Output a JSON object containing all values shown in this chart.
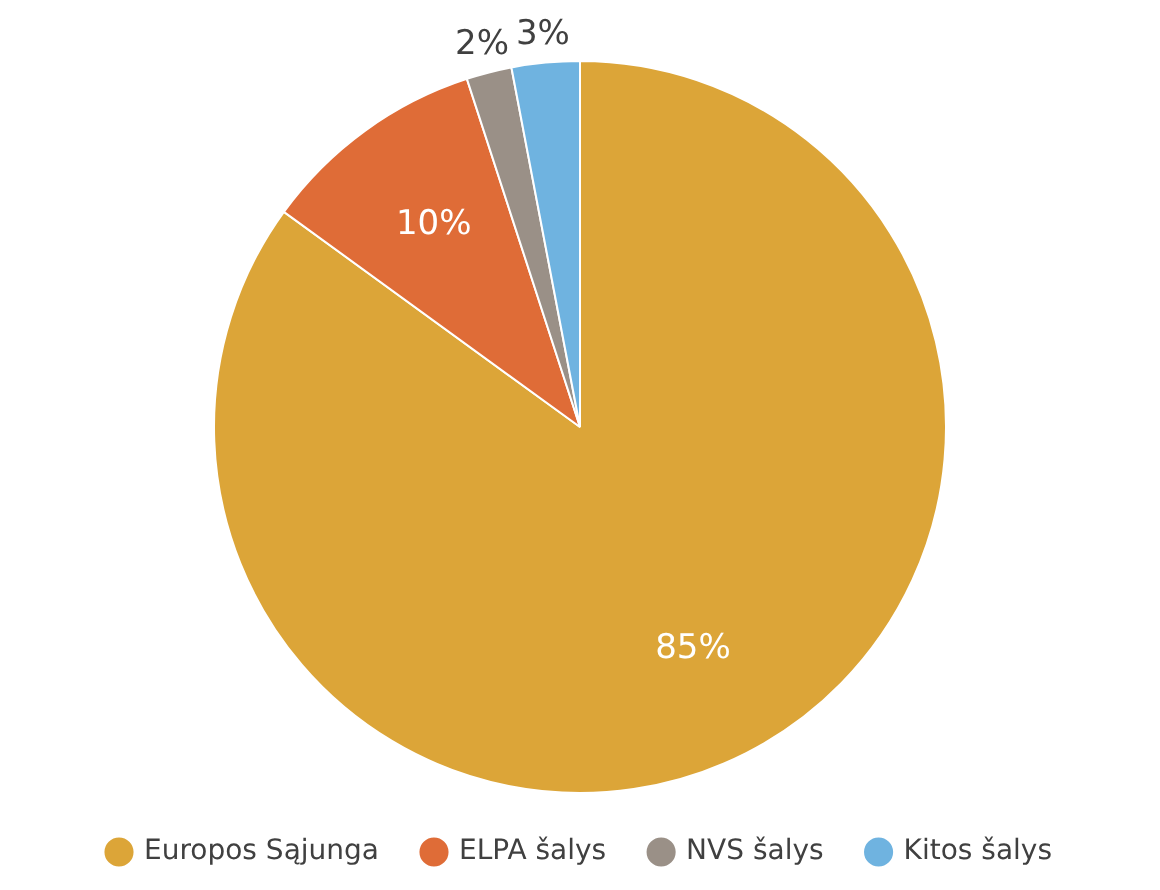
{
  "chart_data": {
    "type": "pie",
    "categories": [
      "Europos Sąjunga",
      "ELPA šalys",
      "NVS šalys",
      "Kitos šalys"
    ],
    "values": [
      85,
      10,
      2,
      3
    ],
    "colors": [
      "#dca538",
      "#df6c37",
      "#9a9087",
      "#6fb3e0"
    ],
    "value_labels": [
      "85%",
      "10%",
      "2%",
      "3%"
    ],
    "legend": "bottom"
  }
}
